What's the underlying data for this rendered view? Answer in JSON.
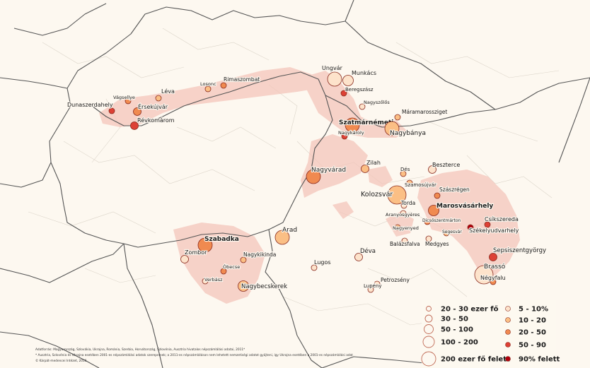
{
  "colors": {
    "background": "#ffffff",
    "land": "#fdf8f0",
    "settlement_area": "#f4c8c0",
    "border": "#555555",
    "minor_border": "#d8d2c8",
    "class_5_10": "#fde3cb",
    "class_10_20": "#fbbf85",
    "class_20_50": "#f08a50",
    "class_50_90": "#dd4035",
    "class_90_plus": "#b0000c"
  },
  "cities": [
    {
      "name": "Dunaszerdahely",
      "size": 1,
      "share": "50-90"
    },
    {
      "name": "Vágsellye",
      "size": 1,
      "share": "20-50"
    },
    {
      "name": "Érsekújvár",
      "size": 2,
      "share": "20-50"
    },
    {
      "name": "Révkomárom",
      "size": 2,
      "share": "50-90"
    },
    {
      "name": "Léva",
      "size": 1,
      "share": "10-20"
    },
    {
      "name": "Losonc",
      "size": 1,
      "share": "10-20"
    },
    {
      "name": "Rimaszombat",
      "size": 1,
      "share": "20-50"
    },
    {
      "name": "Ungvár",
      "size": 4,
      "share": "5-10"
    },
    {
      "name": "Munkács",
      "size": 3,
      "share": "5-10"
    },
    {
      "name": "Beregszász",
      "size": 1,
      "share": "50-90"
    },
    {
      "name": "Nagyszőlős",
      "size": 1,
      "share": "5-10"
    },
    {
      "name": "Szatmárnémeti",
      "size": 4,
      "share": "20-50"
    },
    {
      "name": "Nagykároly",
      "size": 1,
      "share": "50-90"
    },
    {
      "name": "Máramarossziget",
      "size": 1,
      "share": "10-20"
    },
    {
      "name": "Nagybánya",
      "size": 4,
      "share": "10-20"
    },
    {
      "name": "Nagyvárad",
      "size": 4,
      "share": "20-50"
    },
    {
      "name": "Zilah",
      "size": 2,
      "share": "10-20"
    },
    {
      "name": "Beszterce",
      "size": 2,
      "share": "5-10"
    },
    {
      "name": "Dés",
      "size": 1,
      "share": "10-20"
    },
    {
      "name": "Szamosújvár",
      "size": 1,
      "share": "10-20"
    },
    {
      "name": "Kolozsvár",
      "size": 5,
      "share": "10-20"
    },
    {
      "name": "Szászrégen",
      "size": 1,
      "share": "20-50"
    },
    {
      "name": "Torda",
      "size": 1,
      "share": "5-10"
    },
    {
      "name": "Marosvásárhely",
      "size": 3,
      "share": "20-50"
    },
    {
      "name": "Aranyosgyéres",
      "size": 1,
      "share": "5-10"
    },
    {
      "name": "Dicsőszentmárton",
      "size": 1,
      "share": "20-50"
    },
    {
      "name": "Nagyenyed",
      "size": 1,
      "share": "10-20"
    },
    {
      "name": "Csíkszereda",
      "size": 1,
      "share": "50-90"
    },
    {
      "name": "Székelyudvarhely",
      "size": 1,
      "share": "90+"
    },
    {
      "name": "Segesvár",
      "size": 1,
      "share": "10-20"
    },
    {
      "name": "Balázsfalva",
      "size": 1,
      "share": "5-10"
    },
    {
      "name": "Medgyes",
      "size": 1,
      "share": "5-10"
    },
    {
      "name": "Sepsiszentgyörgy",
      "size": 2,
      "share": "50-90"
    },
    {
      "name": "Brassó",
      "size": 5,
      "share": "5-10"
    },
    {
      "name": "Négyfalu",
      "size": 1,
      "share": "20-50"
    },
    {
      "name": "Szabadka",
      "size": 4,
      "share": "20-50"
    },
    {
      "name": "Zombor",
      "size": 2,
      "share": "5-10"
    },
    {
      "name": "Nagykikinda",
      "size": 1,
      "share": "10-20"
    },
    {
      "name": "Óbecse",
      "size": 1,
      "share": "20-50"
    },
    {
      "name": "Verbász",
      "size": 1,
      "share": "5-10"
    },
    {
      "name": "Nagybecskerek",
      "size": 3,
      "share": "10-20"
    },
    {
      "name": "Arad",
      "size": 4,
      "share": "10-20"
    },
    {
      "name": "Lugos",
      "size": 1,
      "share": "5-10"
    },
    {
      "name": "Déva",
      "size": 2,
      "share": "5-10"
    },
    {
      "name": "Petrozsény",
      "size": 1,
      "share": "5-10"
    },
    {
      "name": "Lupény",
      "size": 1,
      "share": "5-10"
    }
  ],
  "legend": {
    "size_classes": [
      "20 - 30 ezer fő",
      "30 - 50",
      "50 - 100",
      "100 - 200",
      "200 ezer fő felett"
    ],
    "share_classes": [
      "5 - 10%",
      "10 - 20",
      "20 - 50",
      "50 - 90",
      "90% felett"
    ]
  },
  "source_note": {
    "line1": "Adatforrás: Magyarország, Szlovákia, Ukrajna, Románia, Szerbia, Horvátország, Szlovénia, Ausztria hivatalos népszámlálási adatai, 2011*",
    "line2": "* Ausztria, Szlovénia és Ukrajna esetében 2001-es népszámlálási adatok szerepelnek; a 2011-es népszámláláson nem lehetett nemzetiségi adatot gyűjteni, így Ukrajna esetében a 2001-es népszámlálási adat",
    "line3": "© Kárpát-medencei Intézet, 2016"
  }
}
